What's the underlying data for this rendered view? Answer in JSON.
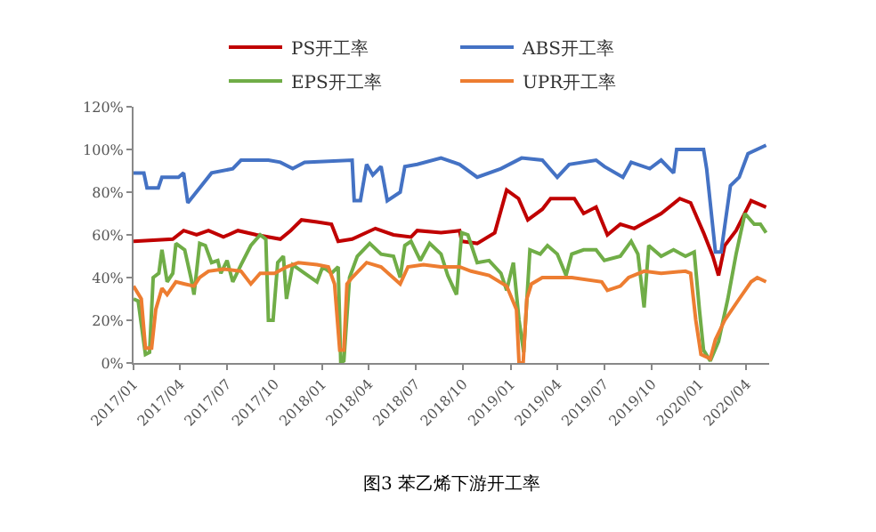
{
  "chart_data": {
    "type": "line",
    "annotations": [
      "图3 苯乙烯下游开工率"
    ],
    "xlim": [
      "2017-01-01",
      "2020-05-15"
    ],
    "xticks": [
      {
        "value": "2017-01-01",
        "label": "2017/01"
      },
      {
        "value": "2017-04-01",
        "label": "2017/04"
      },
      {
        "value": "2017-07-01",
        "label": "2017/07"
      },
      {
        "value": "2017-10-01",
        "label": "2017/10"
      },
      {
        "value": "2018-01-01",
        "label": "2018/01"
      },
      {
        "value": "2018-04-01",
        "label": "2018/04"
      },
      {
        "value": "2018-07-01",
        "label": "2018/07"
      },
      {
        "value": "2018-10-01",
        "label": "2018/10"
      },
      {
        "value": "2019-01-01",
        "label": "2019/01"
      },
      {
        "value": "2019-04-01",
        "label": "2019/04"
      },
      {
        "value": "2019-07-01",
        "label": "2019/07"
      },
      {
        "value": "2019-10-01",
        "label": "2019/10"
      },
      {
        "value": "2020-01-01",
        "label": "2020/01"
      },
      {
        "value": "2020-04-01",
        "label": "2020/04"
      }
    ],
    "ylim": [
      0,
      120
    ],
    "yticks": [
      {
        "value": 0,
        "label": "0%"
      },
      {
        "value": 20,
        "label": "20%"
      },
      {
        "value": 40,
        "label": "40%"
      },
      {
        "value": 60,
        "label": "60%"
      },
      {
        "value": 80,
        "label": "80%"
      },
      {
        "value": 100,
        "label": "100%"
      },
      {
        "value": 120,
        "label": "120%"
      }
    ],
    "legend": "top",
    "marker": "none",
    "line_style": "solid",
    "series": [
      {
        "name": "PS开工率",
        "color": "#c00000",
        "x": [
          "2017-01-01",
          "2017-03-18",
          "2017-04-08",
          "2017-05-03",
          "2017-05-26",
          "2017-06-24",
          "2017-07-22",
          "2017-08-27",
          "2017-10-12",
          "2017-11-01",
          "2017-11-22",
          "2017-12-22",
          "2018-01-19",
          "2018-02-01",
          "2018-02-28",
          "2018-04-14",
          "2018-05-19",
          "2018-06-22",
          "2018-07-04",
          "2018-08-19",
          "2018-09-24",
          "2018-09-28",
          "2018-10-28",
          "2018-12-01",
          "2018-12-24",
          "2019-01-16",
          "2019-02-03",
          "2019-03-03",
          "2019-03-19",
          "2019-04-18",
          "2019-05-04",
          "2019-05-22",
          "2019-06-15",
          "2019-07-07",
          "2019-08-01",
          "2019-08-28",
          "2019-10-19",
          "2019-11-24",
          "2019-12-15",
          "2020-01-09",
          "2020-01-27",
          "2020-02-07",
          "2020-02-19",
          "2020-03-12",
          "2020-04-10",
          "2020-05-09"
        ],
        "values": [
          57,
          58,
          62,
          60,
          62,
          59,
          62,
          60,
          58,
          62,
          67,
          66,
          65,
          57,
          58,
          63,
          60,
          59,
          62,
          61,
          62,
          57,
          56,
          61,
          81,
          77,
          67,
          72,
          77,
          77,
          77,
          70,
          73,
          60,
          65,
          63,
          70,
          77,
          75,
          61,
          50,
          41,
          55,
          62,
          76,
          73
        ]
      },
      {
        "name": "ABS开工率",
        "color": "#4472c4",
        "x": [
          "2017-01-01",
          "2017-01-21",
          "2017-01-27",
          "2017-02-18",
          "2017-02-25",
          "2017-03-29",
          "2017-04-08",
          "2017-04-16",
          "2017-05-09",
          "2017-06-01",
          "2017-07-12",
          "2017-07-28",
          "2017-09-19",
          "2017-10-12",
          "2017-11-05",
          "2017-11-28",
          "2018-02-28",
          "2018-03-04",
          "2018-03-16",
          "2018-03-28",
          "2018-04-09",
          "2018-04-25",
          "2018-05-07",
          "2018-06-01",
          "2018-06-10",
          "2018-07-04",
          "2018-08-19",
          "2018-09-24",
          "2018-10-28",
          "2018-12-13",
          "2019-01-22",
          "2019-03-03",
          "2019-04-01",
          "2019-04-24",
          "2019-06-15",
          "2019-07-01",
          "2019-08-06",
          "2019-08-22",
          "2019-09-27",
          "2019-10-19",
          "2019-11-12",
          "2019-11-18",
          "2020-01-09",
          "2020-01-15",
          "2020-02-01",
          "2020-02-12",
          "2020-03-01",
          "2020-03-18",
          "2020-04-04",
          "2020-05-09"
        ],
        "values": [
          89,
          89,
          82,
          82,
          87,
          87,
          89,
          75,
          82,
          89,
          91,
          95,
          95,
          94,
          91,
          94,
          95,
          76,
          76,
          93,
          88,
          92,
          76,
          80,
          92,
          93,
          96,
          93,
          87,
          91,
          96,
          95,
          87,
          93,
          95,
          92,
          87,
          94,
          91,
          95,
          89,
          100,
          100,
          91,
          52,
          52,
          83,
          87,
          98,
          102
        ]
      },
      {
        "name": "EPS开工率",
        "color": "#70ad47",
        "x": [
          "2017-01-01",
          "2017-01-10",
          "2017-01-24",
          "2017-02-01",
          "2017-02-08",
          "2017-02-19",
          "2017-02-25",
          "2017-03-07",
          "2017-03-18",
          "2017-03-24",
          "2017-04-10",
          "2017-04-22",
          "2017-04-28",
          "2017-05-09",
          "2017-05-20",
          "2017-06-01",
          "2017-06-13",
          "2017-06-19",
          "2017-07-01",
          "2017-07-12",
          "2017-07-28",
          "2017-08-16",
          "2017-09-03",
          "2017-09-14",
          "2017-09-19",
          "2017-09-28",
          "2017-10-07",
          "2017-10-18",
          "2017-10-24",
          "2017-11-05",
          "2017-11-28",
          "2017-12-22",
          "2018-01-02",
          "2018-01-19",
          "2018-02-01",
          "2018-02-06",
          "2018-02-12",
          "2018-02-23",
          "2018-03-10",
          "2018-04-03",
          "2018-04-25",
          "2018-05-19",
          "2018-06-01",
          "2018-06-10",
          "2018-06-22",
          "2018-07-10",
          "2018-07-28",
          "2018-08-19",
          "2018-09-01",
          "2018-09-18",
          "2018-09-28",
          "2018-10-10",
          "2018-10-28",
          "2018-11-20",
          "2018-12-13",
          "2018-12-24",
          "2019-01-06",
          "2019-01-17",
          "2019-01-26",
          "2019-02-07",
          "2019-02-27",
          "2019-03-13",
          "2019-04-01",
          "2019-04-18",
          "2019-04-29",
          "2019-05-22",
          "2019-06-15",
          "2019-07-01",
          "2019-08-01",
          "2019-08-22",
          "2019-09-04",
          "2019-09-16",
          "2019-09-25",
          "2019-10-19",
          "2019-11-12",
          "2019-12-05",
          "2019-12-22",
          "2020-01-01",
          "2020-01-09",
          "2020-01-22",
          "2020-02-07",
          "2020-02-25",
          "2020-03-12",
          "2020-03-29",
          "2020-04-16",
          "2020-04-28",
          "2020-05-09"
        ],
        "values": [
          30,
          29,
          4,
          5,
          40,
          42,
          53,
          38,
          42,
          56,
          53,
          40,
          32,
          56,
          55,
          47,
          48,
          42,
          48,
          38,
          46,
          55,
          60,
          58,
          20,
          20,
          47,
          50,
          30,
          46,
          42,
          38,
          45,
          42,
          45,
          0,
          1,
          40,
          50,
          56,
          51,
          50,
          40,
          55,
          57,
          48,
          56,
          51,
          41,
          32,
          61,
          60,
          47,
          48,
          42,
          34,
          47,
          20,
          5,
          53,
          51,
          55,
          51,
          41,
          51,
          53,
          53,
          48,
          50,
          57,
          51,
          26,
          55,
          50,
          53,
          50,
          52,
          25,
          6,
          1,
          10,
          30,
          51,
          70,
          65,
          65,
          61
        ]
      },
      {
        "name": "UPR开工率",
        "color": "#ed7d31",
        "x": [
          "2017-01-01",
          "2017-01-16",
          "2017-01-24",
          "2017-02-05",
          "2017-02-13",
          "2017-02-25",
          "2017-03-07",
          "2017-03-24",
          "2017-04-10",
          "2017-04-28",
          "2017-05-09",
          "2017-05-26",
          "2017-06-24",
          "2017-07-28",
          "2017-08-16",
          "2017-09-03",
          "2017-10-01",
          "2017-10-24",
          "2017-11-16",
          "2017-12-22",
          "2018-01-13",
          "2018-01-25",
          "2018-02-04",
          "2018-02-12",
          "2018-02-18",
          "2018-02-28",
          "2018-03-28",
          "2018-04-25",
          "2018-06-01",
          "2018-06-16",
          "2018-07-16",
          "2018-08-19",
          "2018-09-24",
          "2018-10-16",
          "2018-11-20",
          "2018-12-24",
          "2019-01-12",
          "2019-01-17",
          "2019-01-25",
          "2019-02-01",
          "2019-02-10",
          "2019-03-03",
          "2019-04-29",
          "2019-06-26",
          "2019-07-07",
          "2019-08-01",
          "2019-08-17",
          "2019-09-16",
          "2019-10-19",
          "2019-12-05",
          "2019-12-15",
          "2019-12-25",
          "2020-01-04",
          "2020-01-22",
          "2020-02-01",
          "2020-02-19",
          "2020-03-18",
          "2020-04-10",
          "2020-04-22",
          "2020-05-09"
        ],
        "values": [
          36,
          30,
          7,
          7,
          25,
          35,
          32,
          38,
          37,
          36,
          40,
          43,
          44,
          43,
          37,
          42,
          42,
          45,
          47,
          46,
          45,
          37,
          6,
          6,
          37,
          40,
          47,
          45,
          37,
          45,
          46,
          45,
          45,
          43,
          41,
          36,
          25,
          0,
          0,
          30,
          37,
          40,
          40,
          38,
          34,
          36,
          40,
          43,
          42,
          43,
          42,
          20,
          4,
          2,
          11,
          20,
          30,
          38,
          40,
          38
        ]
      }
    ]
  }
}
